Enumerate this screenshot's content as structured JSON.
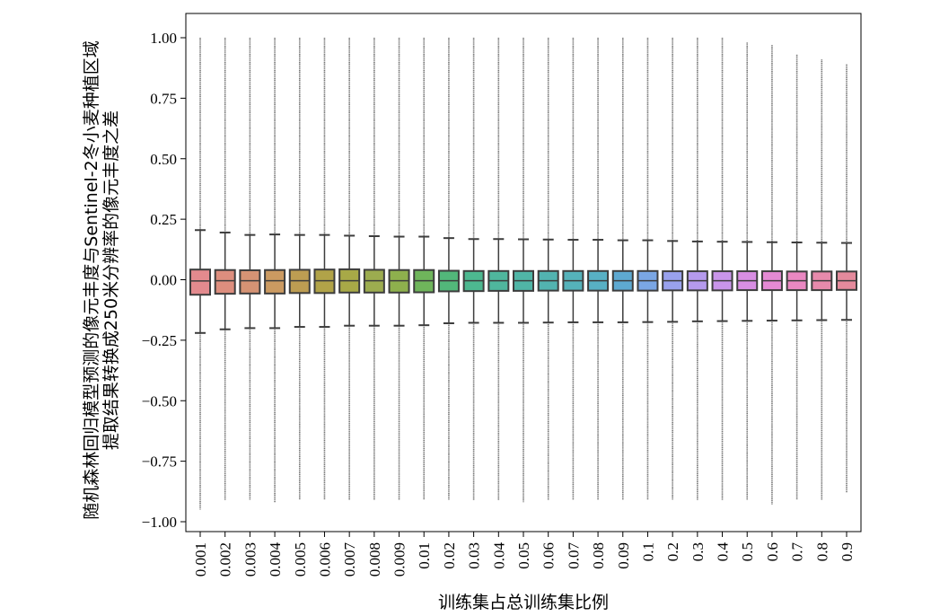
{
  "chart_data": {
    "type": "box",
    "xlabel": "训练集占总训练集比例",
    "ylabel_lines": [
      "随机森林回归模型预测的像元丰度与Sentinel-2冬小麦种植区域",
      "提取结果转换成250米分辨率的像元丰度之差"
    ],
    "ylim": [
      -1.05,
      1.1
    ],
    "yticks": [
      -1.0,
      -0.75,
      -0.5,
      -0.25,
      0.0,
      0.25,
      0.5,
      0.75,
      1.0
    ],
    "ytick_labels": [
      "−1.00",
      "−0.75",
      "−0.50",
      "−0.25",
      "0.00",
      "0.25",
      "0.50",
      "0.75",
      "1.00"
    ],
    "grid": false,
    "categories": [
      "0.001",
      "0.002",
      "0.003",
      "0.004",
      "0.005",
      "0.006",
      "0.007",
      "0.008",
      "0.009",
      "0.01",
      "0.02",
      "0.03",
      "0.04",
      "0.05",
      "0.06",
      "0.07",
      "0.08",
      "0.09",
      "0.1",
      "0.2",
      "0.3",
      "0.4",
      "0.5",
      "0.6",
      "0.7",
      "0.8",
      "0.9"
    ],
    "colors": [
      "#e38a8e",
      "#dd8e7e",
      "#d59374",
      "#cb9a61",
      "#bd9d52",
      "#b1a348",
      "#a8a947",
      "#9cac4f",
      "#8eb04d",
      "#6fb55b",
      "#52b77a",
      "#4db890",
      "#4fb69d",
      "#50b5a6",
      "#52b3b0",
      "#55b2ba",
      "#58b0c4",
      "#5ea9d1",
      "#7aa6e4",
      "#99a1ed",
      "#b59aed",
      "#c995ea",
      "#d88ee3",
      "#e48ad4",
      "#ea88c2",
      "#e78aac",
      "#e48a9c"
    ],
    "boxes": [
      {
        "q1": -0.062,
        "median": -0.005,
        "q3": 0.042,
        "whisker_low": -0.22,
        "whisker_high": 0.205,
        "min": -0.95,
        "max": 1.0
      },
      {
        "q1": -0.058,
        "median": -0.004,
        "q3": 0.04,
        "whisker_low": -0.205,
        "whisker_high": 0.195,
        "min": -0.91,
        "max": 1.0
      },
      {
        "q1": -0.057,
        "median": -0.004,
        "q3": 0.039,
        "whisker_low": -0.2,
        "whisker_high": 0.185,
        "min": -0.91,
        "max": 1.0
      },
      {
        "q1": -0.057,
        "median": -0.004,
        "q3": 0.04,
        "whisker_low": -0.2,
        "whisker_high": 0.187,
        "min": -0.92,
        "max": 1.0
      },
      {
        "q1": -0.055,
        "median": -0.004,
        "q3": 0.041,
        "whisker_low": -0.195,
        "whisker_high": 0.185,
        "min": -0.91,
        "max": 1.0
      },
      {
        "q1": -0.055,
        "median": -0.004,
        "q3": 0.042,
        "whisker_low": -0.195,
        "whisker_high": 0.185,
        "min": -0.91,
        "max": 1.0
      },
      {
        "q1": -0.053,
        "median": -0.004,
        "q3": 0.043,
        "whisker_low": -0.19,
        "whisker_high": 0.182,
        "min": -0.91,
        "max": 1.0
      },
      {
        "q1": -0.053,
        "median": -0.004,
        "q3": 0.041,
        "whisker_low": -0.19,
        "whisker_high": 0.18,
        "min": -0.91,
        "max": 1.0
      },
      {
        "q1": -0.053,
        "median": -0.004,
        "q3": 0.04,
        "whisker_low": -0.19,
        "whisker_high": 0.178,
        "min": -0.91,
        "max": 1.0
      },
      {
        "q1": -0.052,
        "median": -0.004,
        "q3": 0.04,
        "whisker_low": -0.188,
        "whisker_high": 0.178,
        "min": -0.91,
        "max": 1.0
      },
      {
        "q1": -0.048,
        "median": -0.004,
        "q3": 0.037,
        "whisker_low": -0.18,
        "whisker_high": 0.172,
        "min": -0.91,
        "max": 1.0
      },
      {
        "q1": -0.047,
        "median": -0.004,
        "q3": 0.036,
        "whisker_low": -0.178,
        "whisker_high": 0.168,
        "min": -0.91,
        "max": 1.0
      },
      {
        "q1": -0.046,
        "median": -0.004,
        "q3": 0.036,
        "whisker_low": -0.178,
        "whisker_high": 0.168,
        "min": -0.91,
        "max": 1.0
      },
      {
        "q1": -0.046,
        "median": -0.004,
        "q3": 0.036,
        "whisker_low": -0.178,
        "whisker_high": 0.167,
        "min": -0.92,
        "max": 1.0
      },
      {
        "q1": -0.045,
        "median": -0.004,
        "q3": 0.036,
        "whisker_low": -0.177,
        "whisker_high": 0.166,
        "min": -0.91,
        "max": 1.0
      },
      {
        "q1": -0.045,
        "median": -0.004,
        "q3": 0.036,
        "whisker_low": -0.176,
        "whisker_high": 0.165,
        "min": -0.91,
        "max": 1.0
      },
      {
        "q1": -0.045,
        "median": -0.004,
        "q3": 0.036,
        "whisker_low": -0.176,
        "whisker_high": 0.165,
        "min": -0.91,
        "max": 1.0
      },
      {
        "q1": -0.045,
        "median": -0.004,
        "q3": 0.036,
        "whisker_low": -0.176,
        "whisker_high": 0.163,
        "min": -0.91,
        "max": 1.0
      },
      {
        "q1": -0.045,
        "median": -0.004,
        "q3": 0.036,
        "whisker_low": -0.175,
        "whisker_high": 0.163,
        "min": -0.91,
        "max": 1.0
      },
      {
        "q1": -0.044,
        "median": -0.004,
        "q3": 0.035,
        "whisker_low": -0.174,
        "whisker_high": 0.16,
        "min": -0.91,
        "max": 1.0
      },
      {
        "q1": -0.044,
        "median": -0.004,
        "q3": 0.035,
        "whisker_low": -0.172,
        "whisker_high": 0.158,
        "min": -0.91,
        "max": 1.0
      },
      {
        "q1": -0.044,
        "median": -0.004,
        "q3": 0.035,
        "whisker_low": -0.171,
        "whisker_high": 0.157,
        "min": -0.91,
        "max": 1.0
      },
      {
        "q1": -0.043,
        "median": -0.004,
        "q3": 0.035,
        "whisker_low": -0.17,
        "whisker_high": 0.156,
        "min": -0.91,
        "max": 0.98
      },
      {
        "q1": -0.043,
        "median": -0.004,
        "q3": 0.035,
        "whisker_low": -0.169,
        "whisker_high": 0.155,
        "min": -0.93,
        "max": 0.97
      },
      {
        "q1": -0.043,
        "median": -0.004,
        "q3": 0.034,
        "whisker_low": -0.168,
        "whisker_high": 0.154,
        "min": -0.91,
        "max": 0.93
      },
      {
        "q1": -0.043,
        "median": -0.004,
        "q3": 0.034,
        "whisker_low": -0.167,
        "whisker_high": 0.153,
        "min": -0.91,
        "max": 0.91
      },
      {
        "q1": -0.042,
        "median": -0.004,
        "q3": 0.034,
        "whisker_low": -0.166,
        "whisker_high": 0.152,
        "min": -0.88,
        "max": 0.89
      }
    ]
  }
}
